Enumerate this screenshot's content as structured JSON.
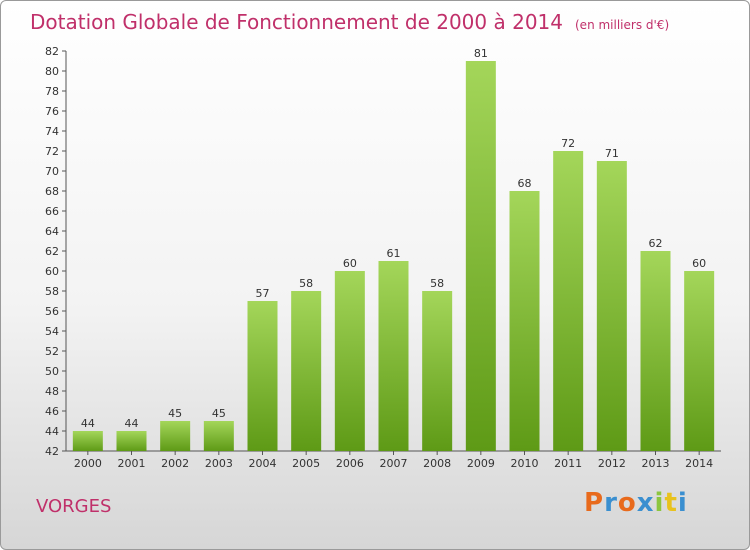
{
  "title": "Dotation Globale de Fonctionnement de 2000 à 2014",
  "unit_note": "(en milliers d'€)",
  "commune": "VORGES",
  "logo": {
    "text": "Proxiti",
    "colors": [
      "#e86a1c",
      "#3a8fd0",
      "#e86a1c",
      "#3a8fd0",
      "#8cc63f",
      "#e8c21c",
      "#3a8fd0"
    ]
  },
  "colors": {
    "bar_light": "#a4d65a",
    "bar_dark": "#5e9a16",
    "title": "#c0306a"
  },
  "chart_data": {
    "type": "bar",
    "title": "Dotation Globale de Fonctionnement de 2000 à 2014",
    "xlabel": "",
    "ylabel": "",
    "categories": [
      "2000",
      "2001",
      "2002",
      "2003",
      "2004",
      "2005",
      "2006",
      "2007",
      "2008",
      "2009",
      "2010",
      "2011",
      "2012",
      "2013",
      "2014"
    ],
    "values": [
      44,
      44,
      45,
      45,
      57,
      58,
      60,
      61,
      58,
      81,
      68,
      72,
      71,
      62,
      60
    ],
    "ylim": [
      42,
      82
    ],
    "yticks": [
      42,
      44,
      46,
      48,
      50,
      52,
      54,
      56,
      58,
      60,
      62,
      64,
      66,
      68,
      70,
      72,
      74,
      76,
      78,
      80,
      82
    ],
    "grid": false,
    "data_labels": true
  }
}
